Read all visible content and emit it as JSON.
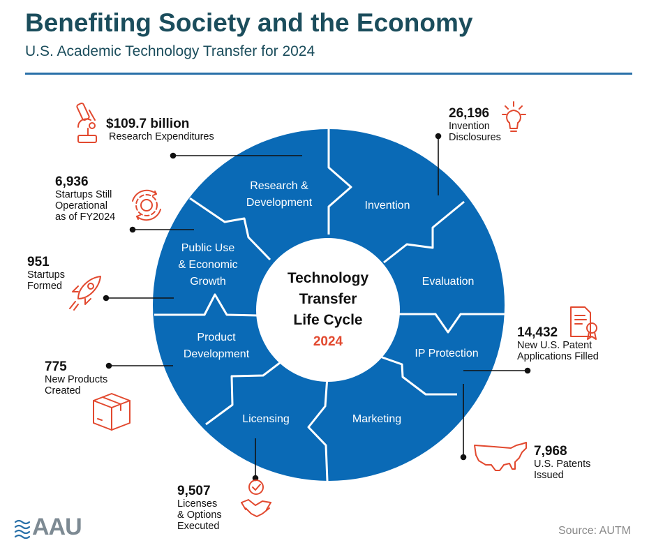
{
  "header": {
    "title": "Benefiting Society and the Economy",
    "subtitle": "U.S. Academic Technology Transfer for 2024"
  },
  "cycle": {
    "center_title": [
      "Technology",
      "Transfer",
      "Life Cycle"
    ],
    "center_year": "2024",
    "segments": [
      {
        "lines": [
          "Research &",
          "Development"
        ]
      },
      {
        "lines": [
          "Invention"
        ]
      },
      {
        "lines": [
          "Evaluation"
        ]
      },
      {
        "lines": [
          "IP Protection"
        ]
      },
      {
        "lines": [
          "Marketing"
        ]
      },
      {
        "lines": [
          "Licensing"
        ]
      },
      {
        "lines": [
          "Product",
          "Development"
        ]
      },
      {
        "lines": [
          "Public Use",
          "& Economic",
          "Growth"
        ]
      }
    ]
  },
  "stats": {
    "research": {
      "value": "$109.7 billion",
      "label": "Research Expenditures",
      "icon": "microscope-icon"
    },
    "invention": {
      "value": "26,196",
      "label": "Invention\nDisclosures",
      "icon": "lightbulb-icon"
    },
    "startups_operational": {
      "value": "6,936",
      "label": "Startups Still\nOperational\nas of FY2024",
      "icon": "gear-cycle-icon"
    },
    "startups_formed": {
      "value": "951",
      "label": "Startups\nFormed",
      "icon": "rocket-icon"
    },
    "patent_applications": {
      "value": "14,432",
      "label": "New U.S. Patent\nApplications Filled",
      "icon": "certificate-icon"
    },
    "new_products": {
      "value": "775",
      "label": "New Products\nCreated",
      "icon": "box-icon"
    },
    "patents_issued": {
      "value": "7,968",
      "label": "U.S. Patents\nIssued",
      "icon": "us-map-icon"
    },
    "licenses": {
      "value": "9,507",
      "label": "Licenses\n& Options\nExecuted",
      "icon": "handshake-icon"
    }
  },
  "footer": {
    "logo_text": "AAU",
    "source": "Source: AUTM"
  },
  "colors": {
    "ring_blue": "#0a6ab6",
    "accent_orange": "#e2492f",
    "title_color": "#1b4d5c",
    "rule_blue": "#2970a8"
  }
}
